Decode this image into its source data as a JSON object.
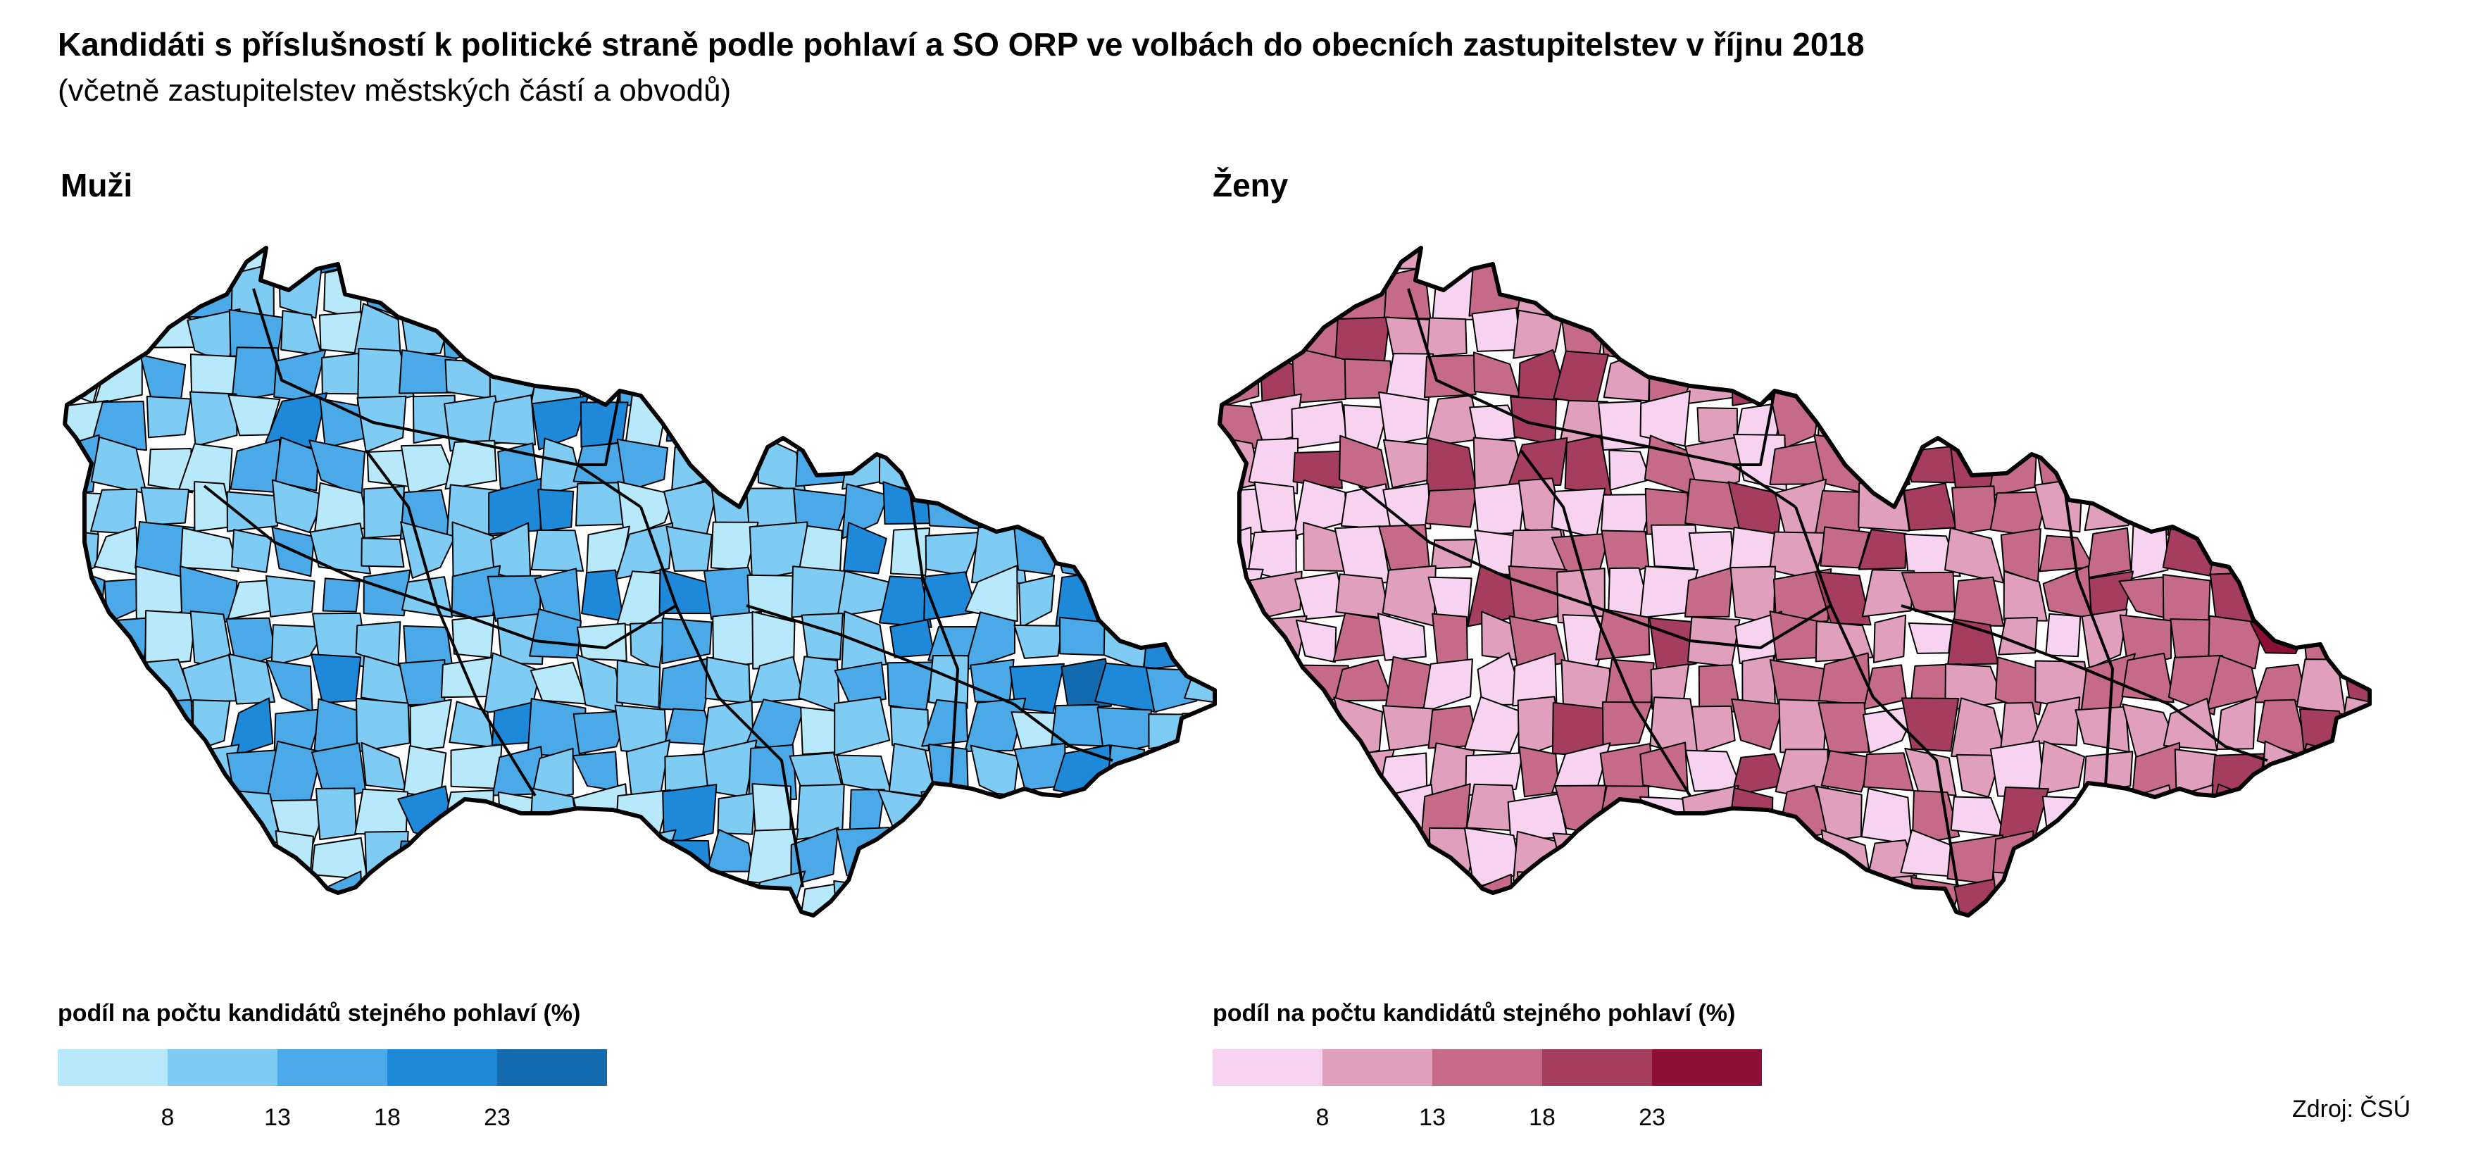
{
  "header": {
    "title": "Kandidáti s příslušností k politické straně podle pohlaví a SO ORP ve volbách do obecních zastupitelstev v říjnu 2018",
    "subtitle": "(včetně zastupitelstev městských částí a obvodů)"
  },
  "panels": [
    {
      "title": "Muži",
      "legend_title": "podíl na počtu kandidátů stejného pohlaví (%)",
      "colors": [
        "#b8e9fb",
        "#7ecbf4",
        "#4aa9e6",
        "#1e88d9",
        "#146aae"
      ],
      "ticks": [
        "8",
        "13",
        "18",
        "23"
      ]
    },
    {
      "title": "Ženy",
      "legend_title": "podíl na počtu kandidátů stejného pohlaví (%)",
      "colors": [
        "#f8d3ef",
        "#e0a0bd",
        "#c66a8a",
        "#a43d5e",
        "#8e0f36"
      ],
      "ticks": [
        "8",
        "13",
        "18",
        "23"
      ]
    }
  ],
  "source": "Zdroj: ČSÚ"
}
